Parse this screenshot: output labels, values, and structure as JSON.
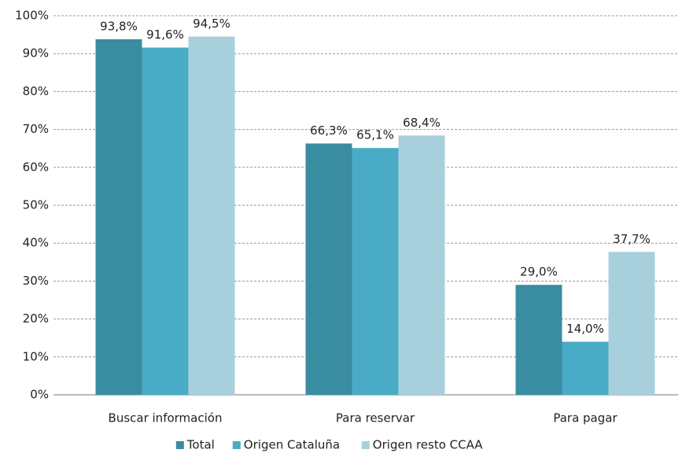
{
  "chart_data": {
    "type": "bar",
    "categories": [
      "Buscar información",
      "Para reservar",
      "Para pagar"
    ],
    "series": [
      {
        "name": "Total",
        "color": "#3a8ca0",
        "values": [
          93.8,
          66.3,
          29.0
        ],
        "value_labels": [
          "93,8%",
          "66,3%",
          "29,0%"
        ]
      },
      {
        "name": "Origen Cataluña",
        "color": "#4aabc6",
        "values": [
          91.6,
          65.1,
          14.0
        ],
        "value_labels": [
          "91,6%",
          "65,1%",
          "14,0%"
        ]
      },
      {
        "name": "Origen resto CCAA",
        "color": "#a8d0dc",
        "values": [
          94.5,
          68.4,
          37.7
        ],
        "value_labels": [
          "94,5%",
          "68,4%",
          "37,7%"
        ]
      }
    ],
    "ylim": [
      0,
      100
    ],
    "yticks": [
      {
        "value": 0,
        "label": "0%"
      },
      {
        "value": 10,
        "label": "10%"
      },
      {
        "value": 20,
        "label": "20%"
      },
      {
        "value": 30,
        "label": "30%"
      },
      {
        "value": 40,
        "label": "40%"
      },
      {
        "value": 50,
        "label": "50%"
      },
      {
        "value": 60,
        "label": "60%"
      },
      {
        "value": 70,
        "label": "70%"
      },
      {
        "value": 80,
        "label": "80%"
      },
      {
        "value": 90,
        "label": "90%"
      },
      {
        "value": 100,
        "label": "100%"
      }
    ],
    "grid": true,
    "legend": "bottom"
  }
}
